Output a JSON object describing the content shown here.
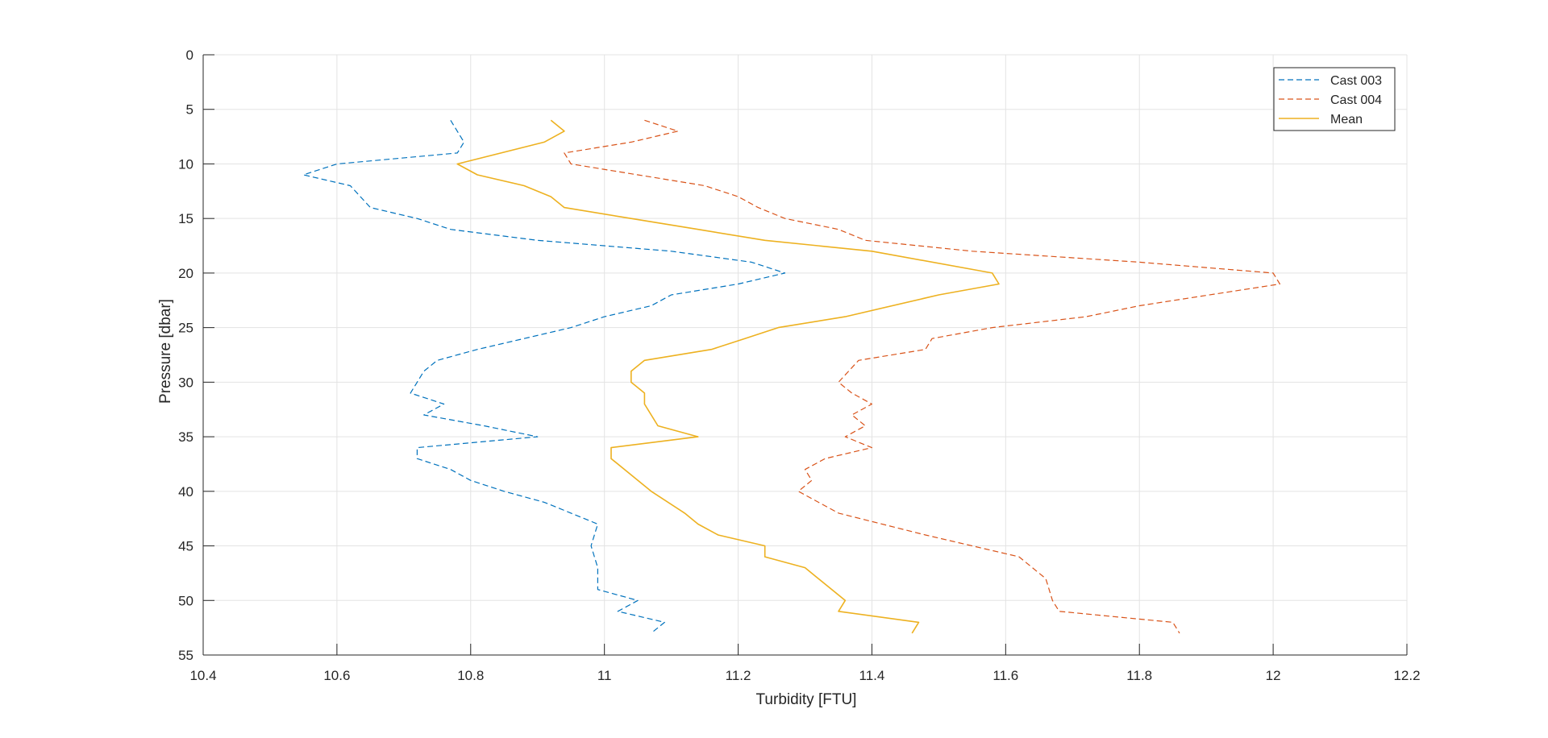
{
  "chart_data": {
    "type": "line",
    "xlabel": "Turbidity [FTU]",
    "ylabel": "Pressure [dbar]",
    "xlim": [
      10.4,
      12.2
    ],
    "ylim": [
      0,
      55
    ],
    "y_reversed": true,
    "x_ticks": [
      10.4,
      10.6,
      10.8,
      11,
      11.2,
      11.4,
      11.6,
      11.8,
      12,
      12.2
    ],
    "x_tick_labels": [
      "10.4",
      "10.6",
      "10.8",
      "11",
      "11.2",
      "11.4",
      "11.6",
      "11.8",
      "12",
      "12.2"
    ],
    "y_ticks": [
      0,
      5,
      10,
      15,
      20,
      25,
      30,
      35,
      40,
      45,
      50,
      55
    ],
    "y_tick_labels": [
      "0",
      "5",
      "10",
      "15",
      "20",
      "25",
      "30",
      "35",
      "40",
      "45",
      "50",
      "55"
    ],
    "grid": true,
    "legend_position": "top-right",
    "series": [
      {
        "name": "Cast 003",
        "color": "#0072BD",
        "style": "dashed",
        "x": [
          10.77,
          10.79,
          10.78,
          10.6,
          10.55,
          10.62,
          10.65,
          10.72,
          10.77,
          10.9,
          11.1,
          11.22,
          11.27,
          11.2,
          11.1,
          11.07,
          11.0,
          10.95,
          10.88,
          10.81,
          10.75,
          10.73,
          10.72,
          10.71,
          10.76,
          10.73,
          10.82,
          10.9,
          10.72,
          10.72,
          10.77,
          10.8,
          10.85,
          10.91,
          10.95,
          10.99,
          10.98,
          10.99,
          10.99,
          11.05,
          11.02,
          11.09,
          11.07
        ],
        "y": [
          6,
          8,
          9,
          10,
          11,
          12,
          14,
          15,
          16,
          17,
          18,
          19,
          20,
          21,
          22,
          23,
          24,
          25,
          26,
          27,
          28,
          29,
          30,
          31,
          32,
          33,
          34,
          35,
          36,
          37,
          38,
          39,
          40,
          41,
          42,
          43,
          45,
          47,
          49,
          50,
          51,
          52,
          53
        ]
      },
      {
        "name": "Cast 004",
        "color": "#D95319",
        "style": "dashed",
        "x": [
          11.06,
          11.11,
          11.04,
          10.94,
          10.95,
          11.05,
          11.15,
          11.2,
          11.23,
          11.27,
          11.35,
          11.39,
          11.55,
          11.8,
          12.0,
          12.01,
          11.8,
          11.72,
          11.58,
          11.49,
          11.48,
          11.38,
          11.35,
          11.37,
          11.4,
          11.37,
          11.39,
          11.36,
          11.4,
          11.33,
          11.3,
          11.31,
          11.29,
          11.35,
          11.48,
          11.62,
          11.66,
          11.67,
          11.68,
          11.85,
          11.86
        ],
        "y": [
          6,
          7,
          8,
          9,
          10,
          11,
          12,
          13,
          14,
          15,
          16,
          17,
          18,
          19,
          20,
          21,
          23,
          24,
          25,
          26,
          27,
          28,
          30,
          31,
          32,
          33,
          34,
          35,
          36,
          37,
          38,
          39,
          40,
          42,
          44,
          46,
          48,
          50,
          51,
          52,
          53
        ]
      },
      {
        "name": "Mean",
        "color": "#EDB120",
        "style": "solid",
        "x": [
          10.92,
          10.94,
          10.91,
          10.78,
          10.81,
          10.88,
          10.92,
          10.94,
          11.04,
          11.14,
          11.24,
          11.4,
          11.58,
          11.59,
          11.5,
          11.36,
          11.26,
          11.21,
          11.16,
          11.06,
          11.04,
          11.04,
          11.06,
          11.06,
          11.08,
          11.14,
          11.01,
          11.01,
          11.07,
          11.12,
          11.14,
          11.17,
          11.24,
          11.24,
          11.3,
          11.32,
          11.36,
          11.35,
          11.47,
          11.46
        ],
        "y": [
          6,
          7,
          8,
          10,
          11,
          12,
          13,
          14,
          15,
          16,
          17,
          18,
          20,
          21,
          22,
          24,
          25,
          26,
          27,
          28,
          29,
          30,
          31,
          32,
          34,
          35,
          36,
          37,
          40,
          42,
          43,
          44,
          45,
          46,
          47,
          48,
          50,
          51,
          52,
          53
        ]
      }
    ]
  }
}
